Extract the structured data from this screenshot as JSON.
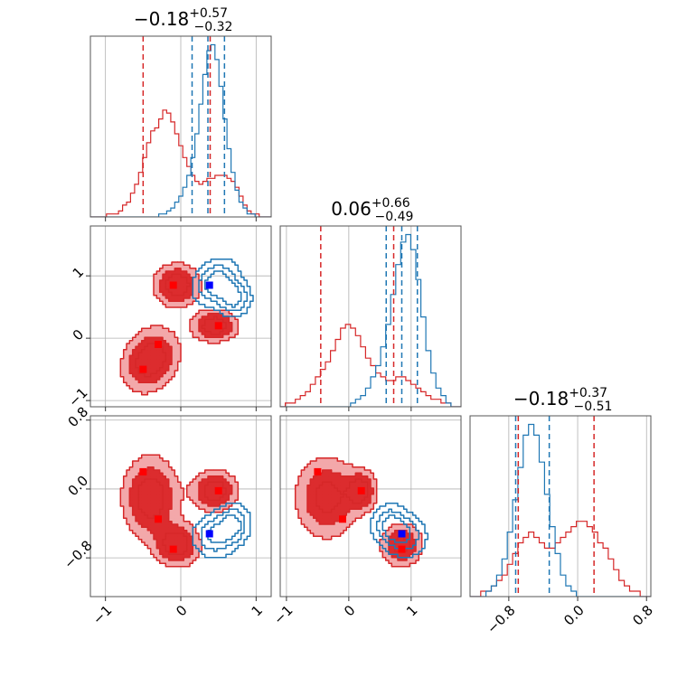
{
  "colors": {
    "red": "#d62728",
    "blue": "#1f77b4",
    "red_fill_outer": "#f3a8aa",
    "red_fill_inner": "#dc2c2e",
    "grid": "#b0b0b0",
    "marker_red": "#ff0000",
    "marker_blue": "#0000ff"
  },
  "chart_data": {
    "type": "corner",
    "grid": true,
    "parameters": [
      {
        "title_value": "−0.18",
        "title_plus": "+0.57",
        "title_minus": "−0.32",
        "range": [
          -1.2,
          1.2
        ],
        "ticks": [
          -1,
          0,
          1
        ],
        "tick_labels": [
          "−1",
          "0",
          "1"
        ],
        "quantiles_red": [
          -0.5,
          0.39
        ],
        "quantiles_blue": [
          0.15,
          0.36,
          0.58
        ],
        "hist_red": [
          0,
          0,
          0,
          0,
          1,
          1,
          1,
          2,
          4,
          5,
          8,
          11,
          15,
          20,
          25,
          29,
          30,
          33,
          36,
          35,
          32,
          28,
          24,
          20,
          17,
          14,
          12,
          11,
          12,
          13,
          13,
          14,
          14,
          14,
          13,
          12,
          10,
          7,
          4,
          2,
          1,
          1,
          0,
          0,
          0
        ],
        "hist_blue": [
          0,
          0,
          0,
          0,
          0,
          0,
          0,
          0,
          0,
          0,
          0,
          0,
          0,
          0,
          0,
          0,
          0,
          1,
          1,
          2,
          3,
          5,
          7,
          10,
          14,
          20,
          28,
          38,
          48,
          56,
          58,
          53,
          44,
          33,
          23,
          15,
          9,
          5,
          3,
          1,
          1,
          0,
          0,
          0,
          0
        ]
      },
      {
        "title_value": "0.06",
        "title_plus": "+0.66",
        "title_minus": "−0.49",
        "range": [
          -1.1,
          1.8
        ],
        "ticks": [
          -1,
          0,
          1
        ],
        "tick_labels": [
          "−1",
          "0",
          "1"
        ],
        "quantiles_red": [
          -0.45,
          0.72
        ],
        "quantiles_blue": [
          0.6,
          0.85,
          1.1
        ],
        "hist_red": [
          0,
          1,
          1,
          2,
          3,
          4,
          6,
          8,
          10,
          12,
          15,
          18,
          21,
          22,
          21,
          19,
          16,
          13,
          11,
          9,
          8,
          7,
          7,
          8,
          8,
          7,
          6,
          5,
          4,
          3,
          2,
          2,
          1,
          1,
          0,
          0
        ],
        "hist_blue": [
          0,
          0,
          0,
          0,
          0,
          0,
          0,
          0,
          0,
          0,
          0,
          0,
          0,
          0,
          1,
          2,
          3,
          5,
          8,
          11,
          16,
          22,
          30,
          38,
          44,
          46,
          42,
          34,
          24,
          15,
          9,
          5,
          3,
          1,
          0,
          0
        ]
      },
      {
        "title_value": "−0.18",
        "title_plus": "+0.37",
        "title_minus": "−0.51",
        "range": [
          -1.25,
          0.85
        ],
        "ticks": [
          -0.8,
          0.0,
          0.8
        ],
        "tick_labels": [
          "−0.8",
          "0.0",
          "0.8"
        ],
        "quantiles_red": [
          -0.69,
          0.19
        ],
        "quantiles_blue": [
          -0.72,
          -0.33
        ],
        "hist_red": [
          0,
          0,
          1,
          1,
          2,
          3,
          4,
          6,
          8,
          10,
          11,
          12,
          11,
          10,
          9,
          9,
          10,
          11,
          12,
          13,
          14,
          14,
          13,
          12,
          10,
          9,
          7,
          5,
          3,
          2,
          1,
          1,
          0,
          0
        ],
        "hist_blue": [
          0,
          0,
          0,
          1,
          2,
          4,
          7,
          12,
          18,
          24,
          30,
          32,
          30,
          25,
          19,
          13,
          8,
          4,
          2,
          1,
          0,
          0,
          0,
          0,
          0,
          0,
          0,
          0,
          0,
          0,
          0,
          0,
          0,
          0
        ]
      }
    ],
    "markers_red": [
      [
        -0.5,
        -0.5,
        0.2
      ],
      [
        -0.3,
        -0.1,
        -0.35
      ],
      [
        -0.1,
        0.85,
        -0.7
      ],
      [
        0.5,
        0.2,
        -0.02
      ]
    ],
    "markers_blue": [
      [
        0.38,
        0.85,
        -0.52
      ]
    ],
    "red_components": [
      {
        "mean": [
          -0.4,
          -0.35,
          -0.1
        ],
        "sd": [
          0.22,
          0.3,
          0.28
        ],
        "rho": 0.2
      },
      {
        "mean": [
          -0.05,
          0.85,
          -0.65
        ],
        "sd": [
          0.18,
          0.2,
          0.15
        ],
        "rho": 0.0
      },
      {
        "mean": [
          0.45,
          0.2,
          -0.02
        ],
        "sd": [
          0.18,
          0.15,
          0.14
        ],
        "rho": 0.0
      }
    ],
    "blue_components": [
      {
        "mean": [
          0.45,
          0.9,
          -0.55
        ],
        "sd": [
          0.18,
          0.22,
          0.15
        ],
        "rho": 0.3
      },
      {
        "mean": [
          0.7,
          0.65,
          -0.4
        ],
        "sd": [
          0.14,
          0.18,
          0.14
        ],
        "rho": 0.0
      }
    ]
  }
}
